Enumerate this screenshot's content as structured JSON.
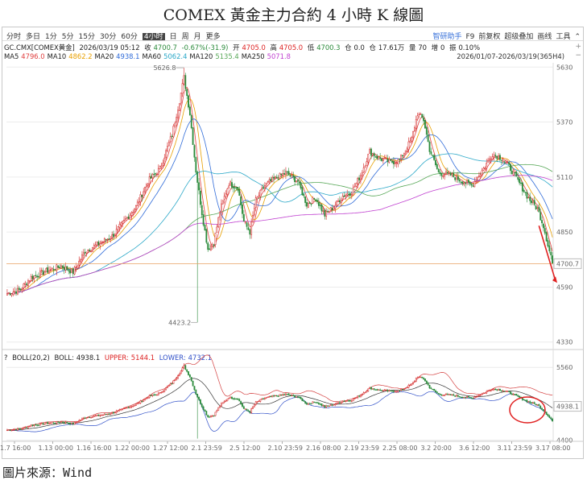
{
  "title": "COMEX 黃金主力合約 4 小時 K 線圖",
  "source": "圖片來源：Wind",
  "toolbar": {
    "periods": [
      "分时",
      "多日",
      "1分",
      "5分",
      "15分",
      "30分",
      "60分",
      "4小时",
      "日",
      "周",
      "月",
      "更多"
    ],
    "active": "4小时",
    "right_items": [
      "智研助手",
      "F9",
      "前复权",
      "超级叠加",
      "画线",
      "工具"
    ],
    "chevron": "⌃"
  },
  "info": {
    "code": "GC.CMX[COMEX黄金]",
    "datetime": "2026/03/19 05:12",
    "close_label": "收",
    "close": "4700.7",
    "change": "-0.67%(-31.9)",
    "open_label": "开",
    "open": "4705.0",
    "high_label": "高",
    "high": "4705.0",
    "low_label": "低",
    "low": "4700.3",
    "oi_change_label": "仓",
    "oi_change": "0.0",
    "oi_label": "仓",
    "oi": "17.61万",
    "vol_label": "量",
    "vol": "70",
    "incr_label": "增",
    "incr": "0",
    "amp_label": "振",
    "amp": "0.10%"
  },
  "ma": [
    {
      "label": "MA5",
      "value": "4796.0",
      "color": "#e04040"
    },
    {
      "label": "MA10",
      "value": "4862.2",
      "color": "#e8a000"
    },
    {
      "label": "MA20",
      "value": "4938.1",
      "color": "#2f6bd8"
    },
    {
      "label": "MA60",
      "value": "5062.4",
      "color": "#2ba8c8"
    },
    {
      "label": "MA120",
      "value": "5135.4",
      "color": "#58a858"
    },
    {
      "label": "MA250",
      "value": "5071.8",
      "color": "#c040d0"
    }
  ],
  "range": "2026/01/07-2026/03/19(365H4)",
  "side_icons": {
    "plus": "+",
    "minus": "−"
  },
  "boll": {
    "icon": "?",
    "label": "BOLL(20,2)",
    "mid_label": "BOLL:",
    "mid": "4938.1",
    "upper_label": "UPPER:",
    "upper": "5144.1",
    "lower_label": "LOWER:",
    "lower": "4732.1"
  },
  "colors": {
    "up": "#d22222",
    "down": "#2a8a3a",
    "mid": "#333333",
    "upper": "#d44040",
    "lower": "#3050c8",
    "current_line": "#e8a060",
    "arrow": "#e02020"
  },
  "chart_data": {
    "type": "candlestick",
    "main": {
      "ylim": [
        4310,
        5650
      ],
      "y_ticks": [
        "5630",
        "5370",
        "5110",
        "4850",
        "4590",
        "4330"
      ],
      "y_values": [
        5630,
        5370,
        5110,
        4850,
        4590,
        4330
      ],
      "current_price": "4700.7",
      "annotations": [
        {
          "label": "5626.8",
          "x": "1.29",
          "value": 5626.8
        },
        {
          "label": "4423.2",
          "x": "1.30",
          "value": 4423.2
        }
      ]
    },
    "sub": {
      "ylim": [
        4380,
        5640
      ],
      "y_ticks": [
        "5560",
        "4938.1",
        "4400"
      ],
      "y_values": [
        5560,
        4938.1,
        4400
      ]
    },
    "x_ticks": [
      "1.7 16:00",
      "1.13 00:00",
      "1.16 16:00",
      "1.22 00:00",
      "1.27 12:00",
      "2.1 23:59",
      "2.5 12:00",
      "2.10 23:59",
      "2.16 08:00",
      "2.19 23:59",
      "2.25 08:00",
      "3.2 20:00",
      "3.6 12:00",
      "3.11 23:59",
      "3.17 08:00"
    ],
    "close_keypoints": [
      [
        0,
        4560
      ],
      [
        8,
        4575
      ],
      [
        16,
        4635
      ],
      [
        26,
        4665
      ],
      [
        36,
        4690
      ],
      [
        44,
        4660
      ],
      [
        52,
        4760
      ],
      [
        60,
        4790
      ],
      [
        70,
        4830
      ],
      [
        78,
        4900
      ],
      [
        86,
        4970
      ],
      [
        94,
        5090
      ],
      [
        102,
        5150
      ],
      [
        110,
        5310
      ],
      [
        115,
        5470
      ],
      [
        118,
        5580
      ],
      [
        122,
        5410
      ],
      [
        126,
        5140
      ],
      [
        130,
        4940
      ],
      [
        134,
        4770
      ],
      [
        138,
        4800
      ],
      [
        142,
        4950
      ],
      [
        148,
        5080
      ],
      [
        154,
        5060
      ],
      [
        158,
        4900
      ],
      [
        162,
        4850
      ],
      [
        166,
        5000
      ],
      [
        172,
        5070
      ],
      [
        178,
        5100
      ],
      [
        186,
        5130
      ],
      [
        194,
        5090
      ],
      [
        200,
        4980
      ],
      [
        206,
        5010
      ],
      [
        212,
        4930
      ],
      [
        218,
        4970
      ],
      [
        224,
        5020
      ],
      [
        230,
        5040
      ],
      [
        236,
        5120
      ],
      [
        242,
        5230
      ],
      [
        248,
        5200
      ],
      [
        256,
        5180
      ],
      [
        262,
        5190
      ],
      [
        270,
        5290
      ],
      [
        274,
        5410
      ],
      [
        278,
        5380
      ],
      [
        282,
        5240
      ],
      [
        288,
        5130
      ],
      [
        296,
        5120
      ],
      [
        304,
        5090
      ],
      [
        310,
        5070
      ],
      [
        318,
        5150
      ],
      [
        324,
        5220
      ],
      [
        330,
        5200
      ],
      [
        336,
        5150
      ],
      [
        342,
        5080
      ],
      [
        348,
        5010
      ],
      [
        354,
        4960
      ],
      [
        358,
        4880
      ],
      [
        362,
        4760
      ],
      [
        365,
        4700.7
      ]
    ],
    "bars_count": 365
  },
  "circle_note": ""
}
